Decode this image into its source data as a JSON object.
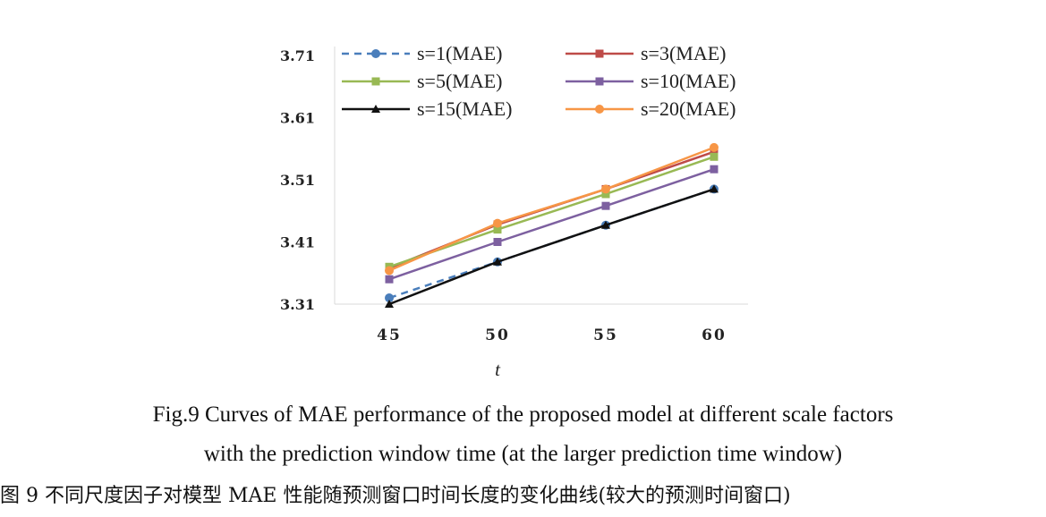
{
  "chart_data": {
    "type": "line",
    "x": [
      45,
      50,
      55,
      60
    ],
    "xlabel": "t",
    "ylabel": "",
    "ylim": [
      3.31,
      3.71
    ],
    "yticks": [
      "3.71",
      "3.61",
      "3.51",
      "3.41",
      "3.31"
    ],
    "xticks": [
      "45",
      "50",
      "55",
      "60"
    ],
    "grid": false,
    "legend_position": "top",
    "series": [
      {
        "name": "s=1(MAE)",
        "values": [
          3.32,
          3.378,
          3.437,
          3.495
        ],
        "color": "#4a7ebb",
        "marker": "circle",
        "dashed": true
      },
      {
        "name": "s=3(MAE)",
        "values": [
          3.368,
          3.438,
          3.495,
          3.555
        ],
        "color": "#be4b48",
        "marker": "square",
        "dashed": false
      },
      {
        "name": "s=5(MAE)",
        "values": [
          3.37,
          3.43,
          3.487,
          3.547
        ],
        "color": "#98b954",
        "marker": "square",
        "dashed": false
      },
      {
        "name": "s=10(MAE)",
        "values": [
          3.35,
          3.41,
          3.468,
          3.527
        ],
        "color": "#7d60a0",
        "marker": "square",
        "dashed": false
      },
      {
        "name": "s=15(MAE)",
        "values": [
          3.31,
          3.378,
          3.437,
          3.495
        ],
        "color": "#111111",
        "marker": "triangle",
        "dashed": false
      },
      {
        "name": "s=20(MAE)",
        "values": [
          3.364,
          3.44,
          3.495,
          3.562
        ],
        "color": "#f79646",
        "marker": "circle",
        "dashed": false
      }
    ]
  },
  "caption": {
    "en_line1": "Fig.9    Curves of MAE performance of the proposed model at different scale factors",
    "en_line2": "with the prediction window time (at the larger prediction time window)",
    "cn": "图 9    不同尺度因子对模型 MAE 性能随预测窗口时间长度的变化曲线(较大的预测时间窗口)"
  }
}
